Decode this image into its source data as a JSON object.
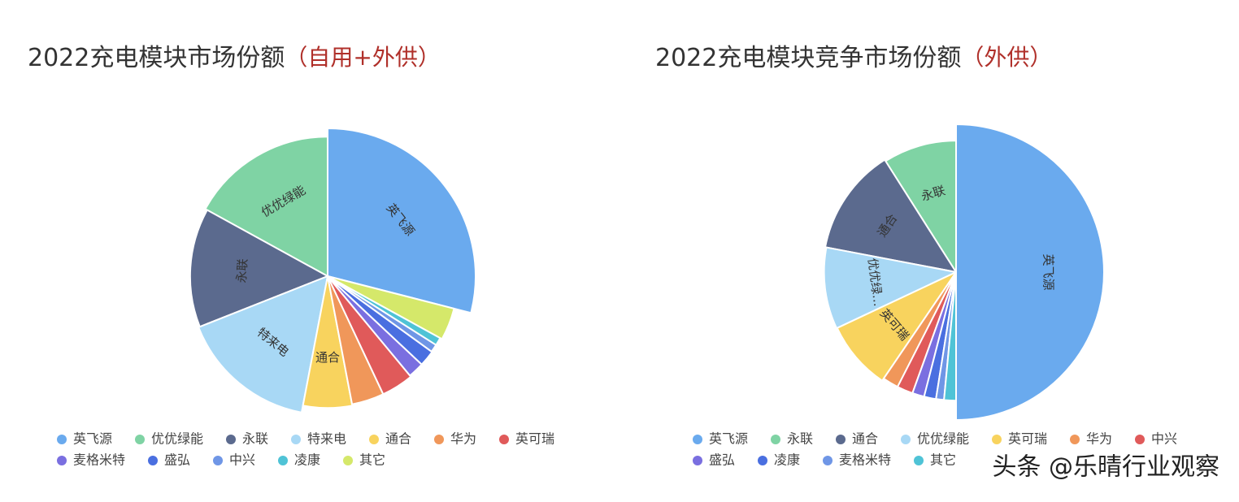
{
  "chart_data": [
    {
      "type": "pie",
      "title": "2022充电模块市场份额",
      "subtitle": "（自用+外供）",
      "categories": [
        "英飞源",
        "优优绿能",
        "永联",
        "特来电",
        "通合",
        "华为",
        "英可瑞",
        "麦格米特",
        "盛弘",
        "中兴",
        "凌康",
        "其它"
      ],
      "values": [
        29,
        17,
        14,
        16,
        6,
        4,
        4,
        2,
        2,
        1,
        1,
        4
      ],
      "colors": [
        "#6aaaee",
        "#7fd3a4",
        "#5b6a8e",
        "#a8d8f5",
        "#f8d35e",
        "#f0975a",
        "#e05a5a",
        "#7a6fe0",
        "#4a6fe0",
        "#6f96e6",
        "#4fc3d6",
        "#d5e86a"
      ],
      "slice_labels": [
        "英飞源",
        "优优绿能",
        "永联",
        "特来电",
        "通合",
        null,
        null,
        null,
        null,
        null,
        null,
        null
      ]
    },
    {
      "type": "pie",
      "title": "2022充电模块竞争市场份额",
      "subtitle": "（外供）",
      "categories": [
        "英飞源",
        "永联",
        "通合",
        "优优绿能",
        "英可瑞",
        "华为",
        "中兴",
        "盛弘",
        "凌康",
        "麦格米特",
        "其它"
      ],
      "values": [
        50,
        9,
        13,
        10,
        8.5,
        2,
        2,
        1.5,
        1.5,
        1,
        1.5
      ],
      "colors": [
        "#6aaaee",
        "#7fd3a4",
        "#5b6a8e",
        "#a8d8f5",
        "#f8d35e",
        "#f0975a",
        "#e05a5a",
        "#7a6fe0",
        "#4a6fe0",
        "#6f96e6",
        "#4fc3d6"
      ],
      "slice_labels": [
        "英飞源",
        "永联",
        "通合",
        "优优绿…",
        "英可瑞",
        null,
        null,
        null,
        null,
        null,
        null
      ]
    }
  ],
  "watermark": "头条 @乐晴行业观察"
}
